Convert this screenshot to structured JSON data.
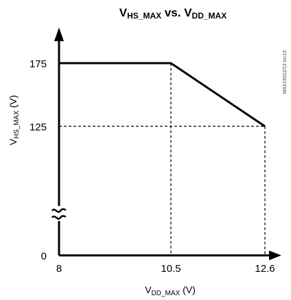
{
  "chart_data": {
    "type": "line",
    "title": {
      "prefix": "V",
      "sub1": "HS_MAX",
      "mid": " vs. V",
      "sub2": "DD_MAX"
    },
    "xlabel": {
      "prefix": "V",
      "sub": "DD_MAX",
      "suffix": " (V)"
    },
    "ylabel": {
      "prefix": "V",
      "sub": "HS_MAX",
      "suffix": " (V)"
    },
    "x_ticks": [
      "8",
      "10.5",
      "12.6"
    ],
    "y_ticks": [
      "0",
      "125",
      "175"
    ],
    "axis_break": "y",
    "series": [
      {
        "x": [
          8,
          10.5,
          12.6
        ],
        "y": [
          175,
          175,
          125
        ]
      }
    ],
    "reference_lines": [
      {
        "orientation": "vertical",
        "x": 10.5,
        "from_y": 0,
        "to_y": 175
      },
      {
        "orientation": "vertical",
        "x": 12.6,
        "from_y": 0,
        "to_y": 125
      },
      {
        "orientation": "horizontal",
        "y": 125,
        "from_x": 8,
        "to_x": 12.6
      }
    ],
    "grid": false,
    "line_color": "#000000"
  },
  "watermark": "MAX15012/13 toc15"
}
